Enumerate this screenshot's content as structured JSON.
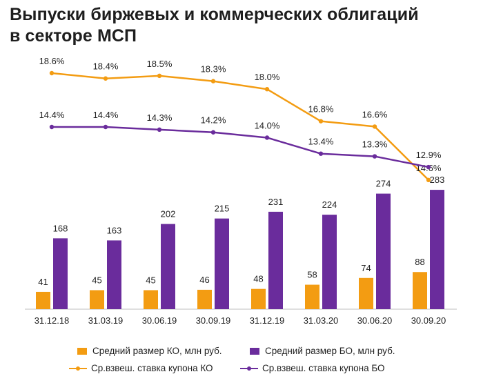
{
  "title_lines": [
    "Выпуски биржевых и коммерческих облигаций",
    "в секторе МСП"
  ],
  "colors": {
    "orange": "#F39C12",
    "purple": "#6A2C9C",
    "axis": "#bfbfbf"
  },
  "legend": {
    "ko_bar": "Средний размер КО, млн руб.",
    "bo_bar": "Средний размер БО, млн руб.",
    "ko_line": "Ср.взвеш. ставка купона КО",
    "bo_line": "Ср.взвеш. ставка купона БО"
  },
  "chart_data": {
    "type": "bar",
    "categories": [
      "31.12.18",
      "31.03.19",
      "30.06.19",
      "30.09.19",
      "31.12.19",
      "31.03.20",
      "30.06.20",
      "30.09.20"
    ],
    "series": [
      {
        "name": "Средний размер КО, млн руб.",
        "kind": "bar",
        "color": "#F39C12",
        "values": [
          41,
          45,
          45,
          46,
          48,
          58,
          74,
          88
        ]
      },
      {
        "name": "Средний размер БО, млн руб.",
        "kind": "bar",
        "color": "#6A2C9C",
        "values": [
          168,
          163,
          202,
          215,
          231,
          224,
          274,
          283
        ]
      },
      {
        "name": "Ср.взвеш. ставка купона КО",
        "kind": "line",
        "color": "#F39C12",
        "values": [
          18.6,
          18.4,
          18.5,
          18.3,
          18.0,
          16.8,
          16.6,
          14.6
        ],
        "labels": [
          "18.6%",
          "18.4%",
          "18.5%",
          "18.3%",
          "18.0%",
          "16.8%",
          "16.6%",
          "14.6%"
        ]
      },
      {
        "name": "Ср.взвеш. ставка купона БО",
        "kind": "line",
        "color": "#6A2C9C",
        "values": [
          14.4,
          14.4,
          14.3,
          14.2,
          14.0,
          13.4,
          13.3,
          12.9
        ],
        "labels": [
          "14.4%",
          "14.4%",
          "14.3%",
          "14.2%",
          "14.0%",
          "13.4%",
          "13.3%",
          "12.9%"
        ]
      }
    ],
    "legend_position": "bottom",
    "grid": false
  }
}
